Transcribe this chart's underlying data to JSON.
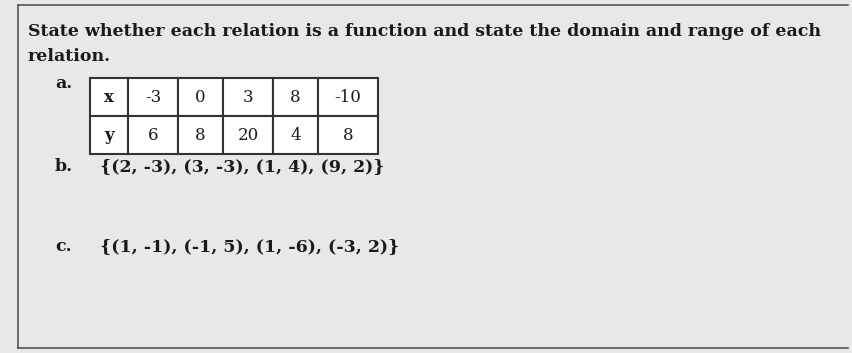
{
  "title_line1": "State whether each relation is a function and state the domain and range of each",
  "title_line2": "relation.",
  "label_a": "a.",
  "label_b": "b.",
  "label_c": "c.",
  "table_x_header": "x",
  "table_y_header": "y",
  "table_x_values": [
    "-3",
    "0",
    "3",
    "8",
    "-10"
  ],
  "table_y_values": [
    "6",
    "8",
    "20",
    "4",
    "8"
  ],
  "text_b": "{(2, -3), (3, -3), (1, 4), (9, 2)}",
  "text_c": "{(1, -1), (-1, 5), (1, -6), (-3, 2)}",
  "bg_color": "#e8e8e8",
  "cell_color": "#ffffff",
  "text_color": "#1a1a1a",
  "border_color": "#333333",
  "font_size_title": 12.5,
  "font_size_body": 12.5,
  "font_size_table": 12
}
